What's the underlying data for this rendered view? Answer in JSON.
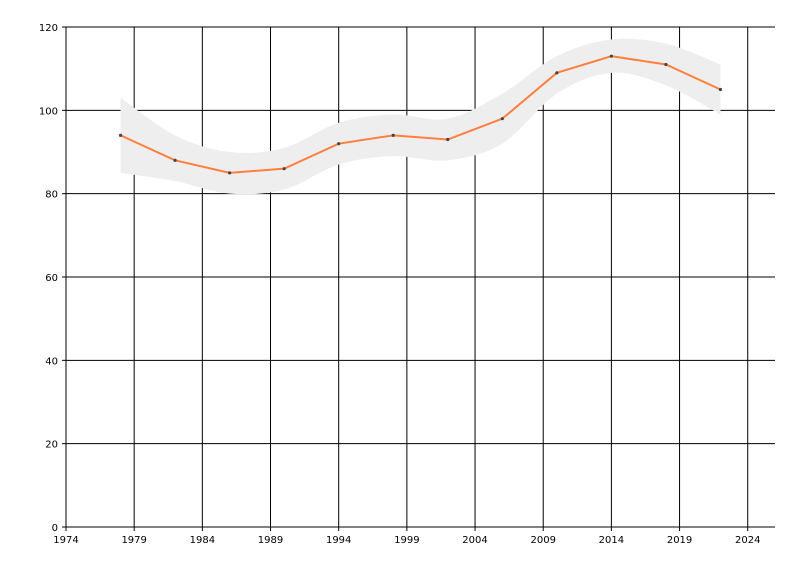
{
  "chart_data": {
    "type": "line",
    "title": "",
    "xlabel": "",
    "ylabel": "",
    "xlim": [
      1974,
      2026
    ],
    "ylim": [
      0,
      120
    ],
    "x_ticks": [
      1974,
      1979,
      1984,
      1989,
      1994,
      1999,
      2004,
      2009,
      2014,
      2019,
      2024
    ],
    "y_ticks": [
      0,
      20,
      40,
      60,
      80,
      100,
      120
    ],
    "grid": true,
    "x": [
      1978,
      1982,
      1986,
      1990,
      1994,
      1998,
      2002,
      2006,
      2010,
      2014,
      2018,
      2022
    ],
    "series": [
      {
        "values": [
          94,
          88,
          85,
          86,
          92,
          94,
          93,
          98,
          109,
          113,
          111,
          105
        ],
        "color": "#ff7f3f"
      }
    ],
    "band": {
      "upper": [
        103,
        94,
        90,
        91,
        97,
        99,
        98,
        104,
        113,
        117,
        116,
        111
      ],
      "lower": [
        85,
        83,
        80,
        81,
        87,
        89,
        88,
        92,
        104,
        109,
        106,
        99
      ],
      "color": "#eeeeee"
    },
    "marker_color": "#444444"
  }
}
